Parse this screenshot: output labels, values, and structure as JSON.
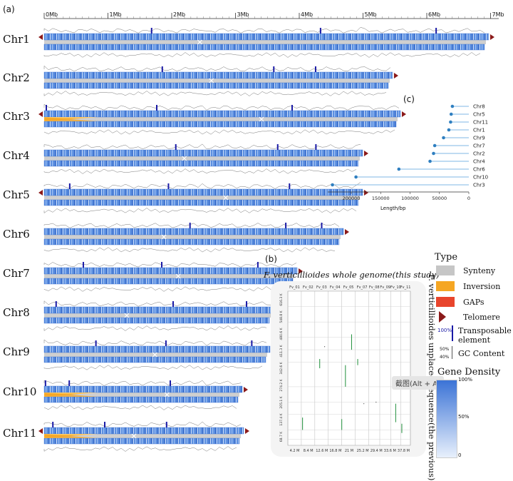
{
  "panel_a": {
    "label": "(a)",
    "ruler": [
      "0Mb",
      "1Mb",
      "2Mb",
      "3Mb",
      "4Mb",
      "5Mb",
      "6Mb",
      "7Mb"
    ],
    "chromosomes": [
      "Chr1",
      "Chr2",
      "Chr3",
      "Chr4",
      "Chr5",
      "Chr6",
      "Chr7",
      "Chr8",
      "Chr9",
      "Chr10",
      "Chr11"
    ]
  },
  "panel_b": {
    "label": "(b)",
    "title": "F. verticillioides whole genome(this study)",
    "ylabel": "F. verticillioides unplaced sequence(the previous)",
    "col_labels": [
      "Fv_01",
      "Fv_02",
      "Fv_03",
      "Fv_04",
      "Fv_05",
      "Fv_07",
      "Fv_08",
      "Fv_09",
      "Fv_10",
      "Fv_11"
    ],
    "x_ticks": [
      "4.2 M",
      "8.4 M",
      "12.6 M",
      "16.8 M",
      "21 M",
      "25.2 M",
      "29.4 M",
      "33.6 M",
      "37.8 M"
    ],
    "y_ticks": [
      "616.3 K",
      "548.8 K",
      "480.6 K",
      "411.3 K",
      "342.6 K",
      "274.2 K",
      "205.1 K",
      "137.4 K",
      "68.7 K"
    ]
  },
  "panel_c": {
    "label": "(c)",
    "xlabel": "Length/bp",
    "x_ticks": [
      "200000",
      "150000",
      "100000",
      "50000",
      "0"
    ],
    "chart_data": {
      "type": "lollipop",
      "categories": [
        "Chr8",
        "Chr5",
        "Chr11",
        "Chr1",
        "Chr9",
        "Chr7",
        "Chr2",
        "Chr4",
        "Chr6",
        "Chr10",
        "Chr3"
      ],
      "values": [
        28000,
        30000,
        31000,
        34000,
        43000,
        58000,
        60000,
        66000,
        119000,
        192000,
        232000
      ],
      "xlim": [
        240000,
        0
      ],
      "xlabel": "Length/bp",
      "colors": {
        "line": "#7fb7e6",
        "dot": "#2f7fc0"
      }
    }
  },
  "legend": {
    "type_title": "Type",
    "items": [
      "Synteny",
      "Inversion",
      "GAPs",
      "Telomere"
    ],
    "te_pct": "100%",
    "te_label_1": "Transposable",
    "te_label_2": "element",
    "gc_50": "50%",
    "gc_40": "40%",
    "gc_label": "GC Content",
    "gene_density_title": "Gene Density",
    "gd_top": "100%",
    "gd_mid": "50%",
    "gd_bot": "0",
    "colors": {
      "synteny": "#c6c6c6",
      "inversion": "#f5a623",
      "gaps": "#e8452c",
      "telomere": "#8b1a1a",
      "te": "#1a1aa6",
      "gene_density": "#3b73d6"
    }
  },
  "overlay": {
    "screenshot_hint": "截图(Alt + A)"
  }
}
